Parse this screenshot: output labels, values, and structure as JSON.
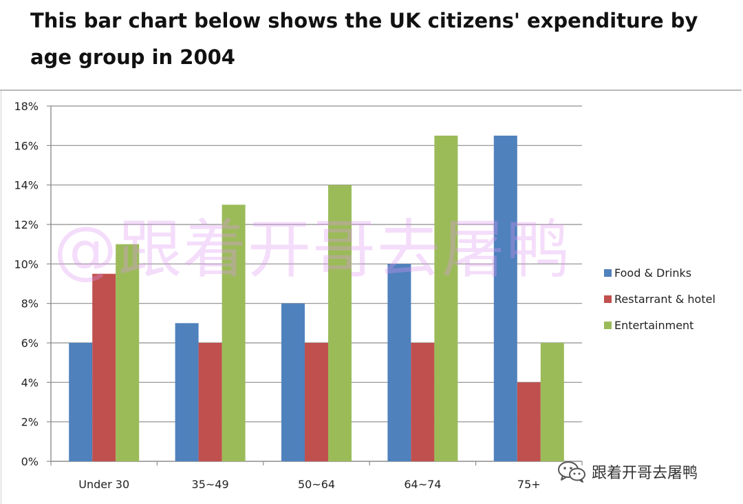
{
  "title": "This bar chart below shows the UK citizens' expenditure by age group in 2004",
  "watermark": {
    "main_text": "@跟着开哥去屠鸭",
    "corner_text": "跟着开哥去屠鸭",
    "corner_icon": "wechat-icon"
  },
  "colors": {
    "food": "#4f81bd",
    "restaurant": "#c0504d",
    "entertainment": "#9bbb59",
    "grid": "#8c8c8c",
    "axis_text": "#222222"
  },
  "chart_data": {
    "type": "bar",
    "title": "This bar chart below shows the UK citizens' expenditure by age group in 2004",
    "xlabel": "",
    "ylabel": "",
    "categories": [
      "Under 30",
      "35~49",
      "50~64",
      "64~74",
      "75+"
    ],
    "series": [
      {
        "name": "Food & Drinks",
        "values": [
          6,
          7,
          8,
          10,
          16.5
        ],
        "color": "#4f81bd"
      },
      {
        "name": "Restarrant & hotel",
        "values": [
          9.5,
          6,
          6,
          6,
          4
        ],
        "color": "#c0504d"
      },
      {
        "name": "Entertainment",
        "values": [
          11,
          13,
          14,
          16.5,
          6
        ],
        "color": "#9bbb59"
      }
    ],
    "ylim": [
      0,
      18
    ],
    "yticks": [
      "0%",
      "2%",
      "4%",
      "6%",
      "8%",
      "10%",
      "12%",
      "14%",
      "16%",
      "18%"
    ],
    "grid": true,
    "legend_position": "right"
  }
}
